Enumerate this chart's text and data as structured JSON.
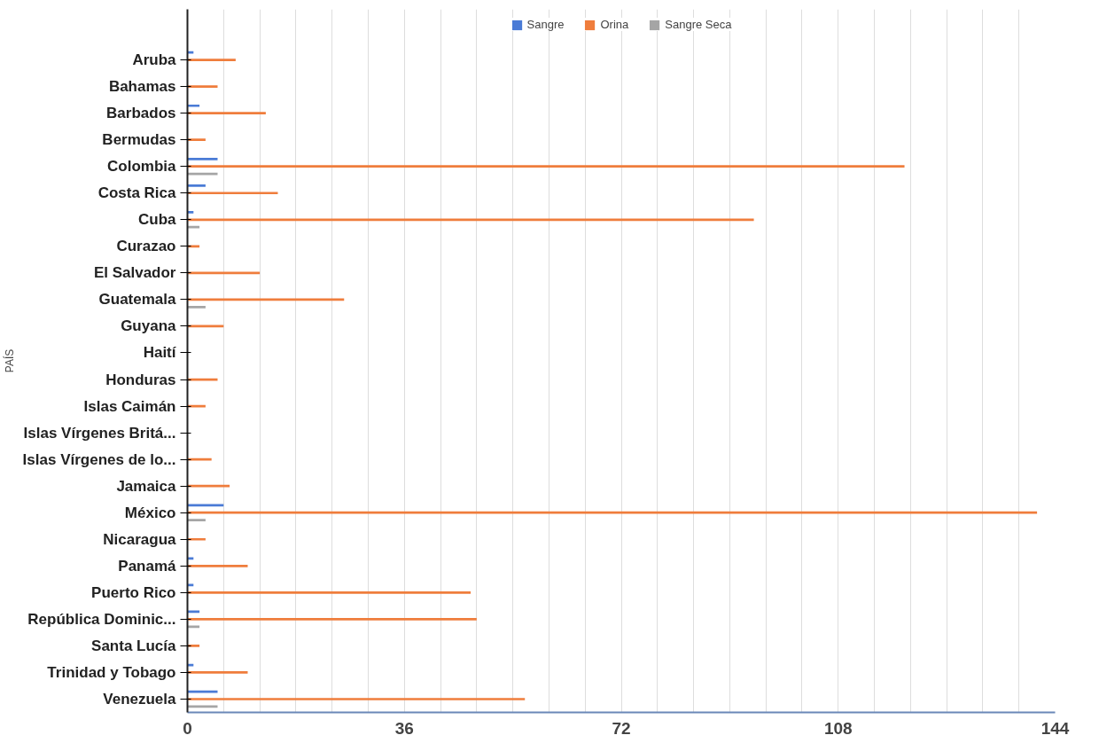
{
  "chart_data": {
    "type": "bar",
    "orientation": "horizontal",
    "ylabel": "PAÍS",
    "categories": [
      "Aruba",
      "Bahamas",
      "Barbados",
      "Bermudas",
      "Colombia",
      "Costa Rica",
      "Cuba",
      "Curazao",
      "El Salvador",
      "Guatemala",
      "Guyana",
      "Haití",
      "Honduras",
      "Islas Caimán",
      "Islas Vírgenes Britá...",
      "Islas Vírgenes de lo...",
      "Jamaica",
      "México",
      "Nicaragua",
      "Panamá",
      "Puerto Rico",
      "República Dominic...",
      "Santa Lucía",
      "Trinidad y Tobago",
      "Venezuela"
    ],
    "series": [
      {
        "name": "Sangre",
        "color": "#4a7bd6",
        "values": [
          1,
          0,
          2,
          0,
          5,
          3,
          1,
          0,
          0,
          0,
          0,
          0,
          0,
          0,
          0,
          0,
          0,
          6,
          0,
          1,
          1,
          2,
          0,
          1,
          5
        ]
      },
      {
        "name": "Orina",
        "color": "#ef7d3c",
        "values": [
          8,
          5,
          13,
          3,
          119,
          15,
          94,
          2,
          12,
          26,
          6,
          0,
          5,
          3,
          0,
          4,
          7,
          141,
          3,
          10,
          47,
          48,
          2,
          10,
          56
        ]
      },
      {
        "name": "Sangre Seca",
        "color": "#a5a5a5",
        "values": [
          0,
          0,
          0,
          0,
          5,
          0,
          2,
          0,
          0,
          3,
          0,
          0,
          0,
          0,
          0,
          0,
          0,
          3,
          0,
          0,
          0,
          2,
          0,
          0,
          5
        ]
      }
    ],
    "xlim": [
      0,
      144
    ],
    "xticks": [
      0,
      {
        "value": 6,
        "label": null
      },
      {
        "value": 12,
        "label": null
      },
      {
        "value": 18,
        "label": null
      },
      {
        "value": 24,
        "label": null
      },
      {
        "value": 30,
        "label": null
      },
      36,
      {
        "value": 42,
        "label": null
      },
      {
        "value": 48,
        "label": null
      },
      {
        "value": 54,
        "label": null
      },
      {
        "value": 60,
        "label": null
      },
      {
        "value": 66,
        "label": null
      },
      72,
      {
        "value": 78,
        "label": null
      },
      {
        "value": 84,
        "label": null
      },
      {
        "value": 90,
        "label": null
      },
      {
        "value": 96,
        "label": null
      },
      {
        "value": 102,
        "label": null
      },
      108,
      {
        "value": 114,
        "label": null
      },
      {
        "value": 120,
        "label": null
      },
      {
        "value": 126,
        "label": null
      },
      {
        "value": 132,
        "label": null
      },
      {
        "value": 138,
        "label": null
      },
      144
    ],
    "grid": "x",
    "legend": "top"
  }
}
